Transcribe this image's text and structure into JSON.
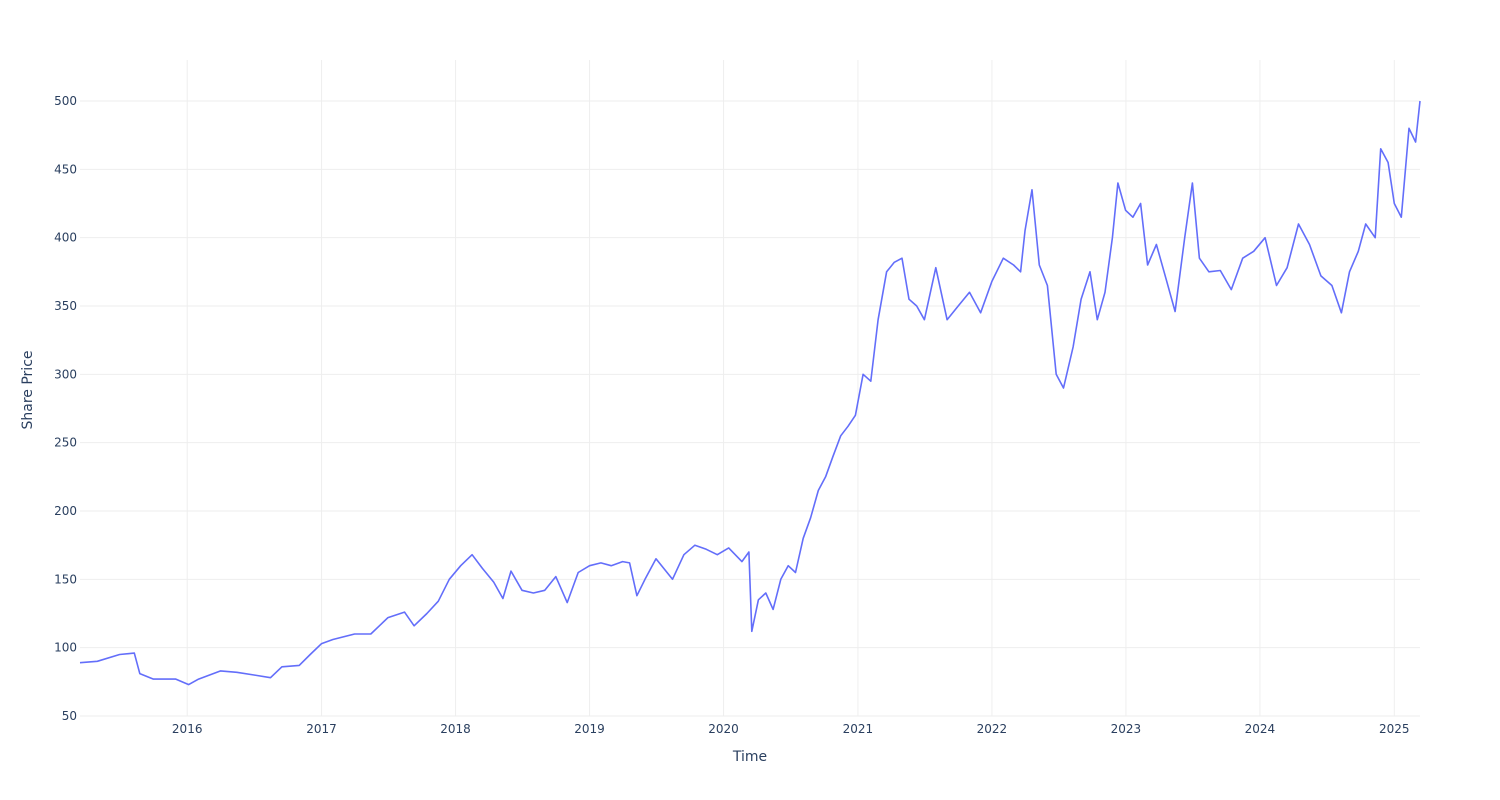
{
  "chart_data": {
    "type": "line",
    "title": "",
    "xlabel": "Time",
    "ylabel": "Share Price",
    "xlim": [
      "2015-03-15",
      "2025-03-12"
    ],
    "ylim": [
      50,
      530
    ],
    "x_ticks": [
      "2016",
      "2017",
      "2018",
      "2019",
      "2020",
      "2021",
      "2022",
      "2023",
      "2024",
      "2025"
    ],
    "y_ticks": [
      50,
      100,
      150,
      200,
      250,
      300,
      350,
      400,
      450,
      500
    ],
    "grid": true,
    "legend": "none",
    "colors": {
      "line": "#636efa",
      "grid": "#eeeeee",
      "text": "#2a3f5f"
    },
    "series": [
      {
        "x": [
          "2015-03-15",
          "2015-05-01",
          "2015-07-01",
          "2015-08-10",
          "2015-08-25",
          "2015-10-01",
          "2015-12-01",
          "2016-01-05",
          "2016-02-01",
          "2016-04-01",
          "2016-05-15",
          "2016-07-01",
          "2016-08-15",
          "2016-09-15",
          "2016-11-01",
          "2016-12-01",
          "2017-01-01",
          "2017-02-01",
          "2017-04-01",
          "2017-05-15",
          "2017-07-01",
          "2017-08-15",
          "2017-09-10",
          "2017-10-15",
          "2017-11-15",
          "2017-12-15",
          "2018-01-15",
          "2018-02-15",
          "2018-03-15",
          "2018-04-15",
          "2018-05-10",
          "2018-06-01",
          "2018-07-01",
          "2018-08-01",
          "2018-09-01",
          "2018-10-01",
          "2018-11-01",
          "2018-12-01",
          "2019-01-01",
          "2019-02-01",
          "2019-03-01",
          "2019-04-01",
          "2019-04-20",
          "2019-05-10",
          "2019-06-01",
          "2019-07-01",
          "2019-08-15",
          "2019-09-15",
          "2019-10-15",
          "2019-11-15",
          "2019-12-15",
          "2020-01-15",
          "2020-02-20",
          "2020-03-10",
          "2020-03-18",
          "2020-04-05",
          "2020-04-25",
          "2020-05-15",
          "2020-06-05",
          "2020-06-25",
          "2020-07-15",
          "2020-08-05",
          "2020-08-25",
          "2020-09-15",
          "2020-10-05",
          "2020-10-25",
          "2020-11-15",
          "2020-12-05",
          "2020-12-25",
          "2021-01-15",
          "2021-02-05",
          "2021-02-25",
          "2021-03-20",
          "2021-04-10",
          "2021-05-01",
          "2021-05-20",
          "2021-06-10",
          "2021-07-01",
          "2021-08-01",
          "2021-09-01",
          "2021-10-01",
          "2021-11-01",
          "2021-12-01",
          "2022-01-01",
          "2022-02-01",
          "2022-03-01",
          "2022-03-20",
          "2022-04-01",
          "2022-04-20",
          "2022-05-10",
          "2022-06-01",
          "2022-06-25",
          "2022-07-15",
          "2022-08-10",
          "2022-09-01",
          "2022-09-25",
          "2022-10-15",
          "2022-11-05",
          "2022-11-25",
          "2022-12-10",
          "2022-12-31",
          "2023-01-20",
          "2023-02-10",
          "2023-03-01",
          "2023-03-25",
          "2023-04-20",
          "2023-05-15",
          "2023-06-10",
          "2023-07-01",
          "2023-07-20",
          "2023-08-15",
          "2023-09-15",
          "2023-10-15",
          "2023-11-15",
          "2023-12-15",
          "2024-01-15",
          "2024-02-15",
          "2024-03-15",
          "2024-04-15",
          "2024-05-15",
          "2024-06-15",
          "2024-07-15",
          "2024-08-10",
          "2024-09-01",
          "2024-09-25",
          "2024-10-15",
          "2024-11-10",
          "2024-11-25",
          "2024-12-15",
          "2025-01-01",
          "2025-01-20",
          "2025-02-10",
          "2025-02-28",
          "2025-03-12"
        ],
        "y": [
          89,
          90,
          95,
          96,
          81,
          77,
          77,
          73,
          77,
          83,
          82,
          80,
          78,
          86,
          87,
          95,
          103,
          106,
          110,
          110,
          122,
          126,
          116,
          125,
          134,
          150,
          160,
          168,
          158,
          148,
          136,
          156,
          142,
          140,
          142,
          152,
          133,
          155,
          160,
          162,
          160,
          163,
          162,
          138,
          150,
          165,
          150,
          168,
          175,
          172,
          168,
          173,
          163,
          170,
          112,
          135,
          140,
          128,
          150,
          160,
          155,
          180,
          195,
          215,
          225,
          240,
          255,
          262,
          270,
          300,
          295,
          340,
          375,
          382,
          385,
          355,
          350,
          340,
          378,
          340,
          350,
          360,
          345,
          368,
          385,
          380,
          375,
          405,
          435,
          380,
          365,
          300,
          290,
          320,
          355,
          375,
          340,
          360,
          400,
          440,
          420,
          415,
          425,
          380,
          395,
          370,
          346,
          400,
          440,
          385,
          375,
          376,
          362,
          385,
          390,
          400,
          365,
          378,
          410,
          395,
          372,
          365,
          345,
          375,
          390,
          410,
          400,
          465,
          455,
          425,
          415,
          480,
          470,
          500
        ]
      }
    ]
  }
}
